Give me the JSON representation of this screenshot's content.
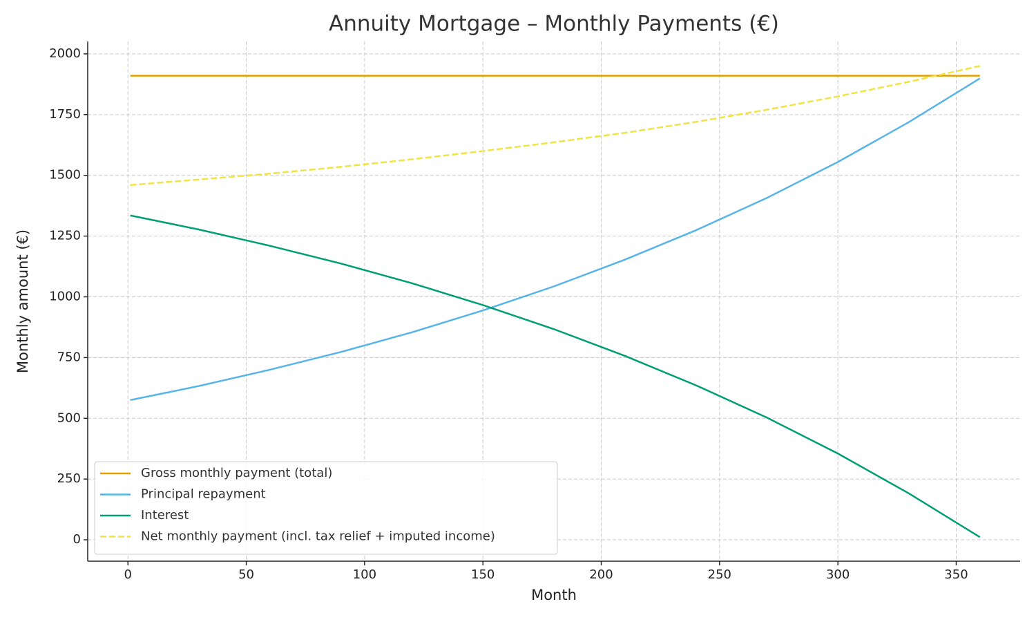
{
  "chart_data": {
    "type": "line",
    "title": "Annuity Mortgage – Monthly Payments (€)",
    "xlabel": "Month",
    "ylabel": "Monthly amount (€)",
    "x": [
      1,
      30,
      60,
      90,
      120,
      150,
      180,
      210,
      240,
      270,
      300,
      330,
      360
    ],
    "series": [
      {
        "name": "Gross monthly payment (total)",
        "color": "#E69F00",
        "linestyle": "solid",
        "values": [
          1910,
          1910,
          1910,
          1910,
          1910,
          1910,
          1910,
          1910,
          1910,
          1910,
          1910,
          1910,
          1910
        ]
      },
      {
        "name": "Principal repayment",
        "color": "#56B4E9",
        "linestyle": "solid",
        "values": [
          575,
          633,
          700,
          773,
          854,
          944,
          1043,
          1153,
          1274,
          1407,
          1555,
          1719,
          1899
        ]
      },
      {
        "name": "Interest",
        "color": "#009E73",
        "linestyle": "solid",
        "values": [
          1335,
          1277,
          1210,
          1137,
          1056,
          966,
          867,
          757,
          636,
          503,
          355,
          191,
          11
        ]
      },
      {
        "name": "Net monthly payment (incl. tax relief + imputed income)",
        "color": "#F0E442",
        "linestyle": "dashed",
        "values": [
          1460,
          1483,
          1507,
          1535,
          1566,
          1600,
          1636,
          1675,
          1720,
          1770,
          1825,
          1885,
          1950
        ]
      }
    ],
    "xlim": [
      -17,
      377
    ],
    "xticks": [
      0,
      50,
      100,
      150,
      200,
      250,
      300,
      350
    ],
    "ylim": [
      -88,
      2051
    ],
    "yticks": [
      0,
      250,
      500,
      750,
      1000,
      1250,
      1500,
      1750,
      2000
    ],
    "grid": true,
    "legend": "lower left"
  }
}
